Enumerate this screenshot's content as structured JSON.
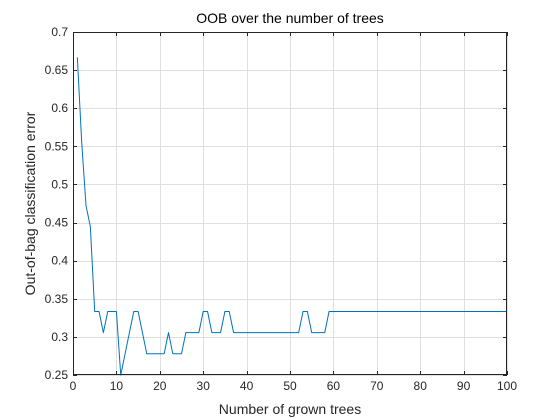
{
  "chart_data": {
    "type": "line",
    "title": "OOB over the number of trees",
    "xlabel": "Number of grown trees",
    "ylabel": "Out-of-bag classification error",
    "xlim": [
      0,
      100
    ],
    "ylim": [
      0.25,
      0.7
    ],
    "xticks": [
      0,
      10,
      20,
      30,
      40,
      50,
      60,
      70,
      80,
      90,
      100
    ],
    "yticks": [
      0.25,
      0.3,
      0.35,
      0.4,
      0.45,
      0.5,
      0.55,
      0.6,
      0.65,
      0.7
    ],
    "grid": true,
    "series_color": "#0072BD",
    "axes_color": "#262626",
    "grid_color": "#DFDFDF",
    "series": [
      {
        "x": [
          1,
          2,
          3,
          4,
          5,
          6,
          7,
          8,
          9,
          10,
          11,
          12,
          13,
          14,
          15,
          16,
          17,
          18,
          19,
          20,
          21,
          22,
          23,
          24,
          25,
          26,
          27,
          28,
          29,
          30,
          31,
          32,
          33,
          34,
          35,
          36,
          37,
          38,
          39,
          40,
          41,
          42,
          43,
          44,
          45,
          46,
          47,
          48,
          49,
          50,
          51,
          52,
          53,
          54,
          55,
          56,
          57,
          58,
          59,
          60,
          61,
          62,
          63,
          64,
          65,
          66,
          67,
          68,
          69,
          70,
          71,
          72,
          73,
          74,
          75,
          76,
          77,
          78,
          79,
          80,
          81,
          82,
          83,
          84,
          85,
          86,
          87,
          88,
          89,
          90,
          91,
          92,
          93,
          94,
          95,
          96,
          97,
          98,
          99,
          100
        ],
        "values": [
          0.6667,
          0.5556,
          0.4722,
          0.4444,
          0.3333,
          0.3333,
          0.3056,
          0.3333,
          0.3333,
          0.3333,
          0.25,
          0.2778,
          0.3056,
          0.3333,
          0.3333,
          0.3056,
          0.2778,
          0.2778,
          0.2778,
          0.2778,
          0.2778,
          0.3056,
          0.2778,
          0.2778,
          0.2778,
          0.3056,
          0.3056,
          0.3056,
          0.3056,
          0.3333,
          0.3333,
          0.3056,
          0.3056,
          0.3056,
          0.3333,
          0.3333,
          0.3056,
          0.3056,
          0.3056,
          0.3056,
          0.3056,
          0.3056,
          0.3056,
          0.3056,
          0.3056,
          0.3056,
          0.3056,
          0.3056,
          0.3056,
          0.3056,
          0.3056,
          0.3056,
          0.3333,
          0.3333,
          0.3056,
          0.3056,
          0.3056,
          0.3056,
          0.3333,
          0.3333,
          0.3333,
          0.3333,
          0.3333,
          0.3333,
          0.3333,
          0.3333,
          0.3333,
          0.3333,
          0.3333,
          0.3333,
          0.3333,
          0.3333,
          0.3333,
          0.3333,
          0.3333,
          0.3333,
          0.3333,
          0.3333,
          0.3333,
          0.3333,
          0.3333,
          0.3333,
          0.3333,
          0.3333,
          0.3333,
          0.3333,
          0.3333,
          0.3333,
          0.3333,
          0.3333,
          0.3333,
          0.3333,
          0.3333,
          0.3333,
          0.3333,
          0.3333,
          0.3333,
          0.3333,
          0.3333,
          0.3333
        ]
      }
    ]
  }
}
